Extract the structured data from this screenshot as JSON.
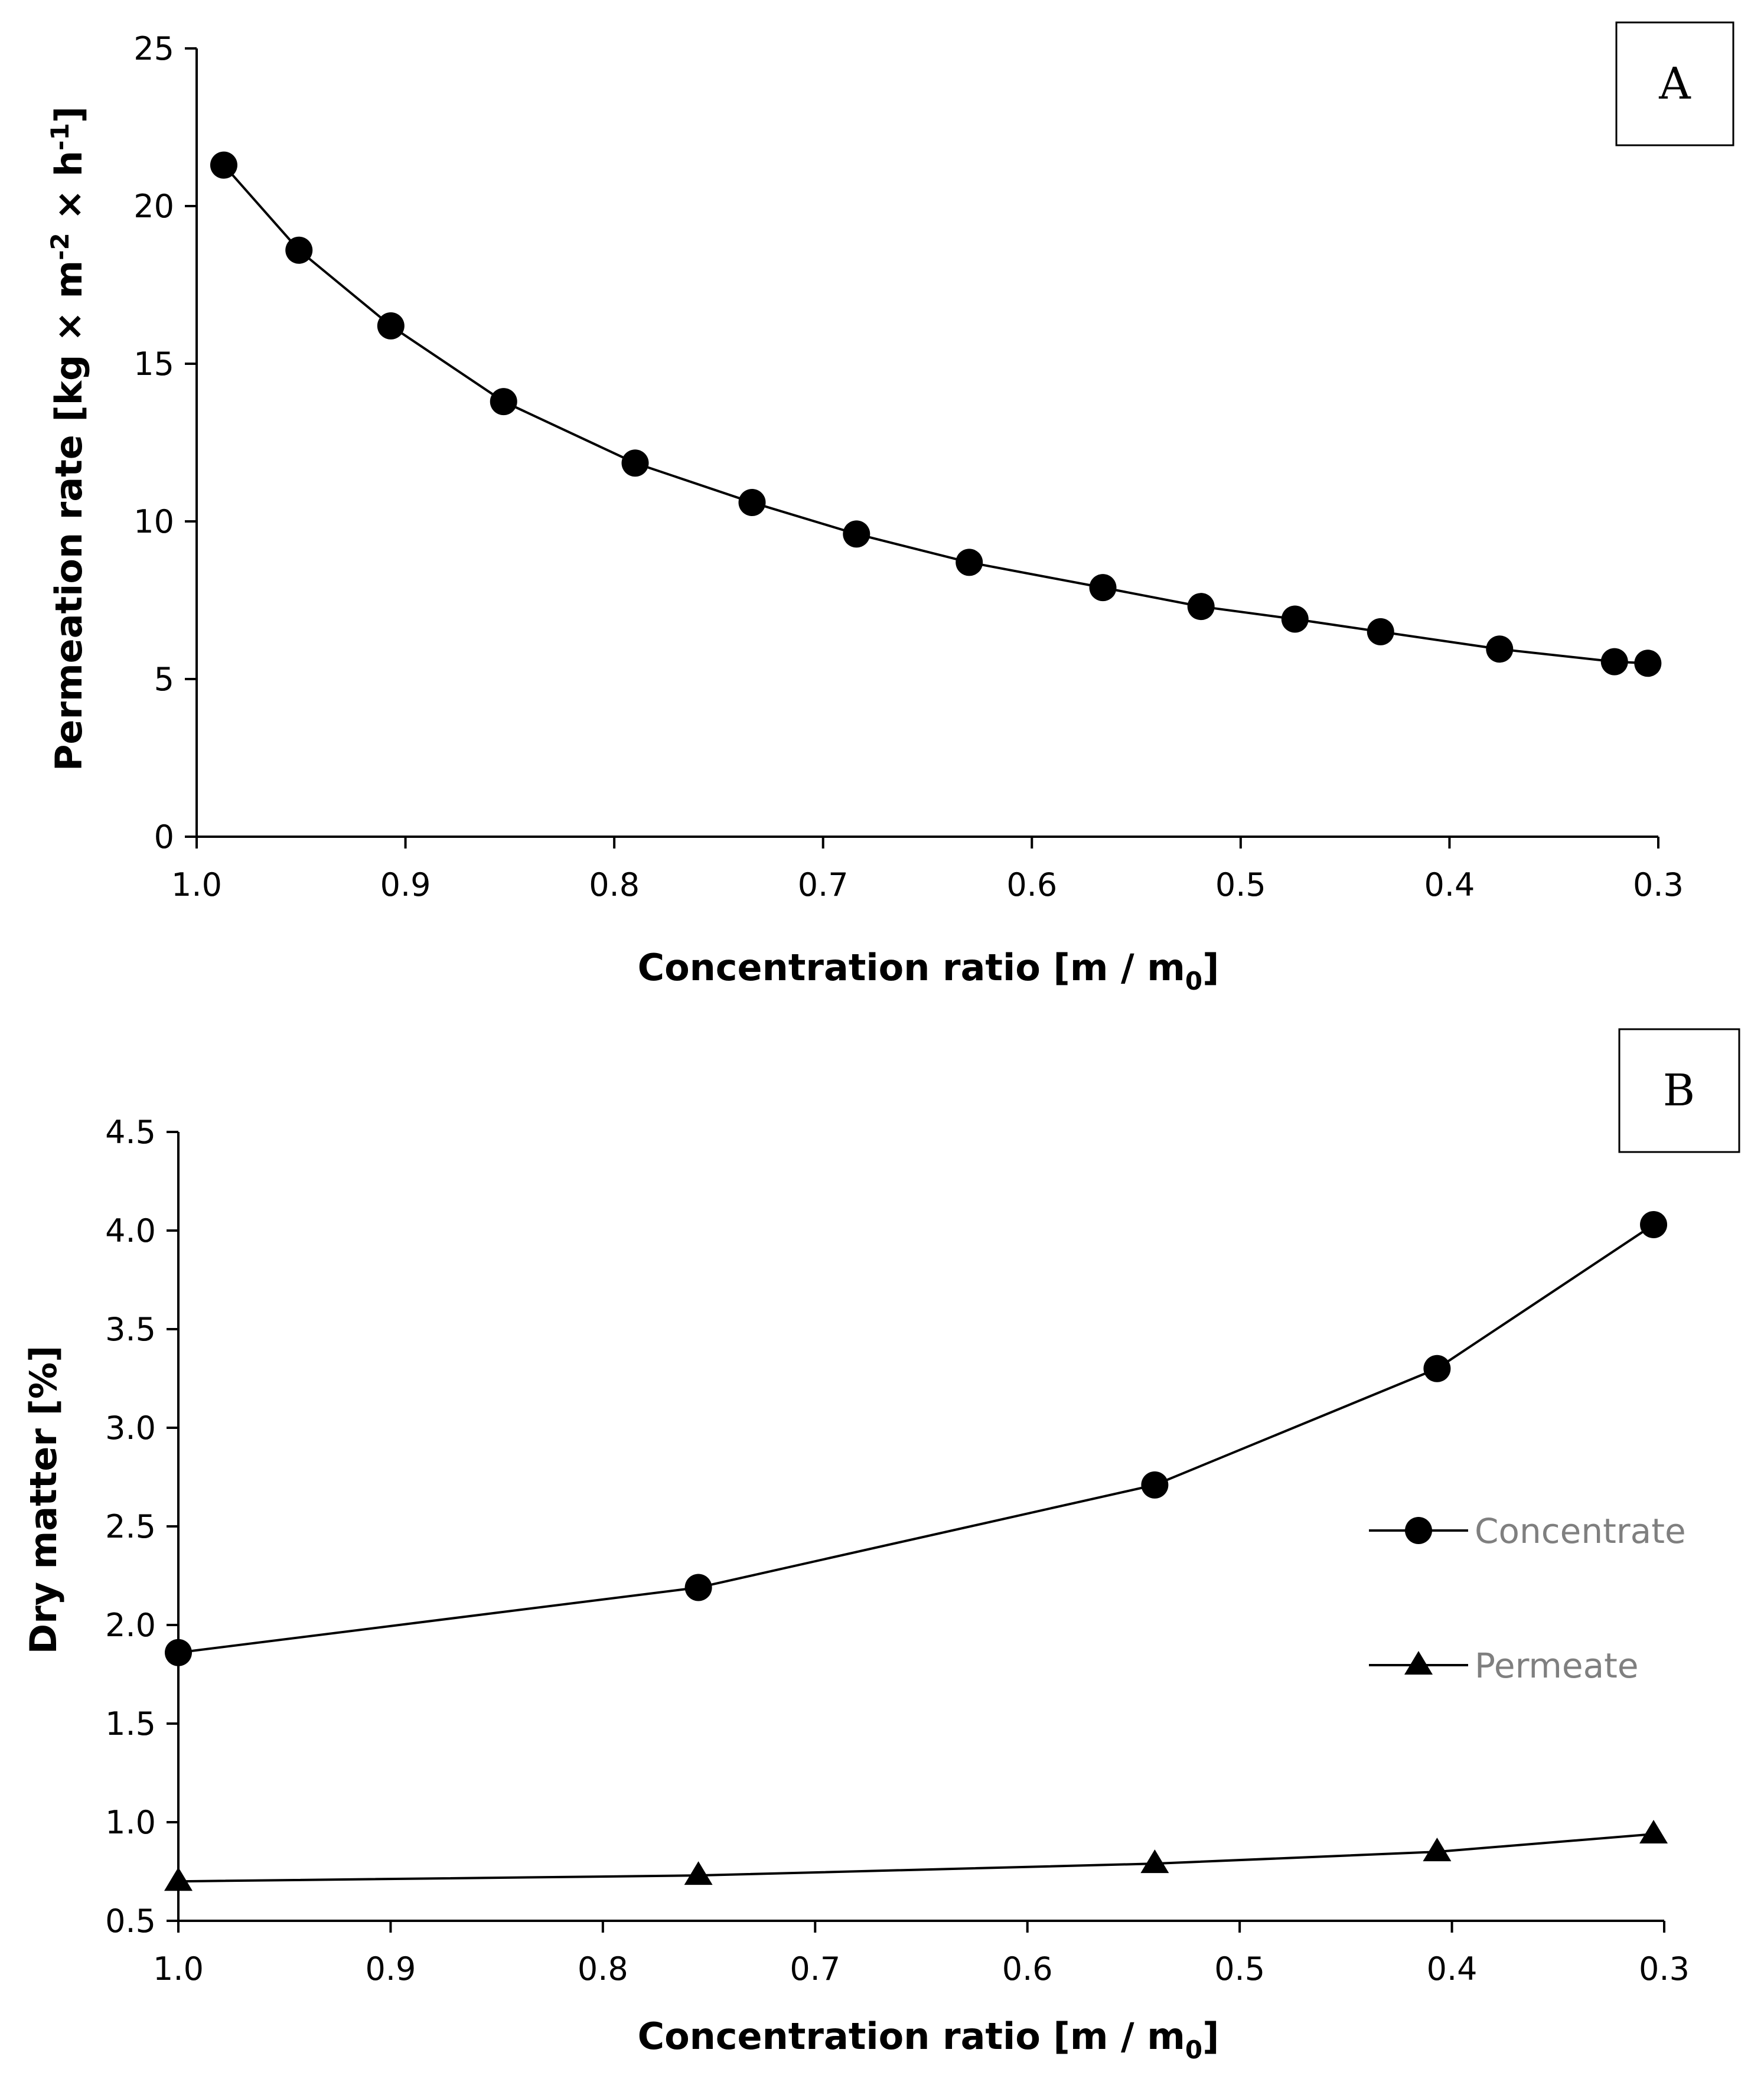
{
  "chart_data": [
    {
      "panel": "A",
      "type": "line",
      "series": [
        {
          "name": "Permeation rate",
          "marker": "circle",
          "x": [
            0.987,
            0.951,
            0.907,
            0.853,
            0.79,
            0.734,
            0.684,
            0.63,
            0.566,
            0.519,
            0.474,
            0.433,
            0.376,
            0.321,
            0.305
          ],
          "y": [
            21.3,
            18.6,
            16.2,
            13.8,
            11.85,
            10.6,
            9.6,
            8.7,
            7.9,
            7.3,
            6.9,
            6.5,
            5.95,
            5.55,
            5.5
          ]
        }
      ],
      "xlim": [
        1.0,
        0.3
      ],
      "ylim": [
        0,
        25
      ],
      "xticks": [
        1.0,
        0.9,
        0.8,
        0.7,
        0.6,
        0.5,
        0.4,
        0.3
      ],
      "yticks": [
        0,
        5,
        10,
        15,
        20,
        25
      ],
      "xtick_labels": [
        "1.0",
        "0.9",
        "0.8",
        "0.7",
        "0.6",
        "0.5",
        "0.4",
        "0.3"
      ],
      "ytick_labels": [
        "0",
        "5",
        "10",
        "15",
        "20",
        "25"
      ],
      "xlabel": {
        "main": "Concentration ratio [m / m",
        "sub": "0",
        "close": "]"
      },
      "ylabel": {
        "p1": "Permeation rate [kg × m",
        "sup1": "-2",
        "p2": " × h",
        "sup2": "-1",
        "p3": "]"
      },
      "grid": false
    },
    {
      "panel": "B",
      "type": "line",
      "series": [
        {
          "name": "Concentrate",
          "marker": "circle",
          "x": [
            1.0,
            0.755,
            0.54,
            0.407,
            0.305
          ],
          "y": [
            1.86,
            2.19,
            2.71,
            3.3,
            4.03
          ]
        },
        {
          "name": "Permeate",
          "marker": "triangle",
          "x": [
            1.0,
            0.755,
            0.54,
            0.407,
            0.305
          ],
          "y": [
            0.7,
            0.73,
            0.79,
            0.85,
            0.94
          ]
        }
      ],
      "xlim": [
        1.0,
        0.3
      ],
      "ylim": [
        0.5,
        4.5
      ],
      "xticks": [
        1.0,
        0.9,
        0.8,
        0.7,
        0.6,
        0.5,
        0.4,
        0.3
      ],
      "yticks": [
        0.5,
        1.0,
        1.5,
        2.0,
        2.5,
        3.0,
        3.5,
        4.0,
        4.5
      ],
      "xtick_labels": [
        "1.0",
        "0.9",
        "0.8",
        "0.7",
        "0.6",
        "0.5",
        "0.4",
        "0.3"
      ],
      "ytick_labels": [
        "0.5",
        "1.0",
        "1.5",
        "2.0",
        "2.5",
        "3.0",
        "3.5",
        "4.0",
        "4.5"
      ],
      "xlabel": {
        "main": "Concentration ratio [m / m",
        "sub": "0",
        "close": "]"
      },
      "ylabel": {
        "p1": "Dry matter [%]"
      },
      "legend_position": "right",
      "grid": false
    }
  ],
  "colors": {
    "ink": "#000000",
    "legend_text": "#7f7f7f",
    "background": "#ffffff"
  }
}
